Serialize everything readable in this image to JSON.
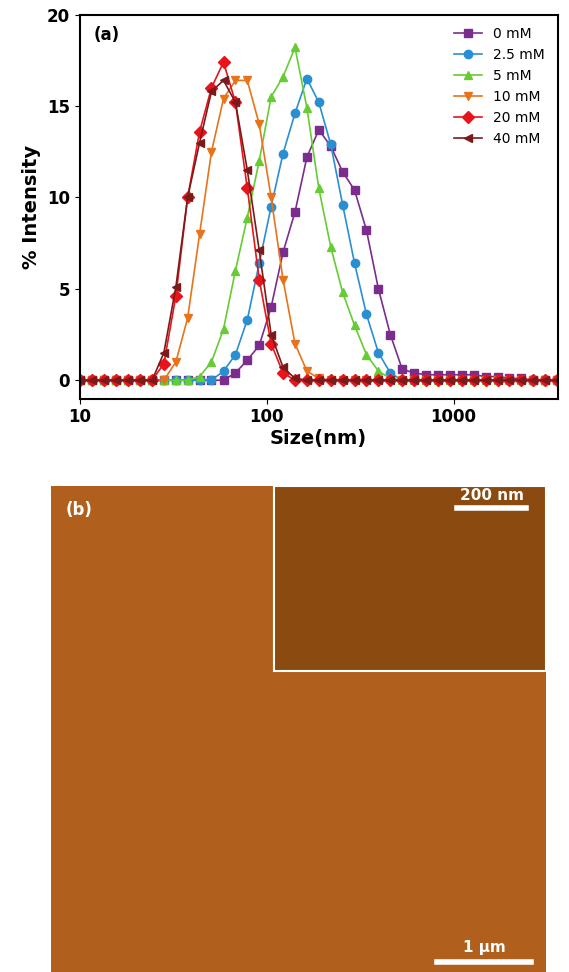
{
  "chart_data": {
    "type": "line",
    "annotations": [
      "(a)"
    ],
    "x_label": "Size(nm)",
    "y_label": "% Intensity",
    "x": [
      10.1,
      11.7,
      13.5,
      15.7,
      18.2,
      21.0,
      24.4,
      28.2,
      32.7,
      37.8,
      43.8,
      50.7,
      58.8,
      68.1,
      78.8,
      91.3,
      105.7,
      122.4,
      141.8,
      164.2,
      190.1,
      220.2,
      255.0,
      295.3,
      342.0,
      396.1,
      458.7,
      531.2,
      615.1,
      712.4,
      825.0,
      955.4,
      1106,
      1281,
      1484,
      1718,
      1990,
      2305,
      2669,
      3091,
      3580
    ],
    "series": [
      {
        "name": "0 mM",
        "color": "#7b2d8e",
        "marker": "square",
        "values": [
          0,
          0,
          0,
          0,
          0,
          0,
          0,
          0,
          0,
          0,
          0,
          0,
          0,
          0.4,
          1.1,
          1.9,
          4.0,
          7.0,
          9.2,
          12.2,
          13.7,
          12.8,
          11.4,
          10.4,
          8.2,
          5.0,
          2.5,
          0.6,
          0.4,
          0.3,
          0.3,
          0.3,
          0.3,
          0.3,
          0.2,
          0.2,
          0.1,
          0.1,
          0,
          0,
          0
        ]
      },
      {
        "name": "2.5 mM",
        "color": "#2a8fd0",
        "marker": "circle",
        "values": [
          0,
          0,
          0,
          0,
          0,
          0,
          0,
          0,
          0,
          0,
          0,
          0,
          0.5,
          1.4,
          3.3,
          6.4,
          9.5,
          12.4,
          14.6,
          16.5,
          15.2,
          12.9,
          9.6,
          6.4,
          3.6,
          1.5,
          0.4,
          0,
          0,
          0,
          0,
          0,
          0,
          0,
          0,
          0,
          0,
          0,
          0,
          0,
          0
        ]
      },
      {
        "name": "5 mM",
        "color": "#66cc33",
        "marker": "triangle_up",
        "values": [
          0,
          0,
          0,
          0,
          0,
          0,
          0,
          0,
          0,
          0,
          0.2,
          1.0,
          2.8,
          6.0,
          8.9,
          12.0,
          15.5,
          16.6,
          18.2,
          14.9,
          10.5,
          7.3,
          4.8,
          3.0,
          1.4,
          0.5,
          0.1,
          0,
          0,
          0,
          0,
          0,
          0,
          0,
          0,
          0,
          0,
          0,
          0,
          0,
          0
        ]
      },
      {
        "name": "10 mM",
        "color": "#e8731a",
        "marker": "triangle_down",
        "values": [
          0,
          0,
          0,
          0,
          0,
          0,
          0,
          0,
          1.0,
          3.4,
          8.0,
          12.5,
          15.4,
          16.4,
          16.4,
          14.0,
          10.0,
          5.5,
          2.0,
          0.5,
          0.1,
          0,
          0,
          0,
          0,
          0,
          0,
          0,
          0,
          0,
          0,
          0,
          0,
          0,
          0,
          0,
          0,
          0,
          0,
          0,
          0
        ]
      },
      {
        "name": "20 mM",
        "color": "#e8141b",
        "marker": "diamond",
        "values": [
          0,
          0,
          0,
          0,
          0,
          0,
          0,
          0.9,
          4.6,
          10.0,
          13.6,
          16.0,
          17.4,
          15.2,
          10.5,
          5.5,
          2.0,
          0.4,
          0,
          0,
          0,
          0,
          0,
          0,
          0,
          0,
          0,
          0,
          0,
          0,
          0,
          0,
          0,
          0,
          0,
          0,
          0,
          0,
          0,
          0,
          0
        ]
      },
      {
        "name": "40 mM",
        "color": "#7a1a1a",
        "marker": "triangle_left",
        "values": [
          0,
          0,
          0,
          0,
          0,
          0,
          0,
          1.5,
          5.1,
          10.0,
          13.0,
          15.8,
          16.4,
          15.2,
          11.5,
          7.1,
          2.5,
          0.7,
          0.1,
          0,
          0,
          0,
          0,
          0,
          0,
          0,
          0,
          0,
          0,
          0,
          0,
          0,
          0,
          0,
          0,
          0,
          0,
          0,
          0,
          0,
          0
        ]
      }
    ],
    "xlim": [
      10,
      3600
    ],
    "xticks": [
      10,
      100,
      1000
    ],
    "ylim": [
      -1,
      20
    ],
    "yticks": [
      0,
      5,
      10,
      15,
      20
    ],
    "log": "x",
    "grid": false,
    "legend": "upper right"
  },
  "image": {
    "label": "(b)",
    "inset_scale_bar": "200 nm",
    "scale_bar": "1 µm"
  }
}
